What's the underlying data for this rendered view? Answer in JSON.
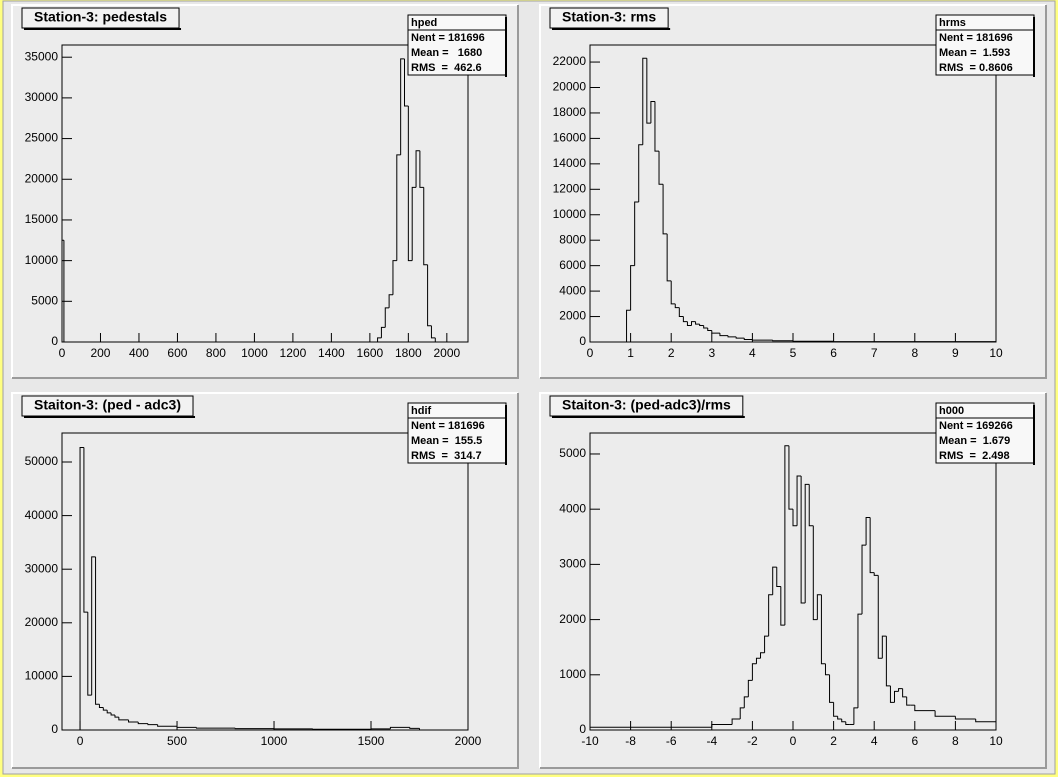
{
  "chart_data": [
    {
      "type": "histogram",
      "title": "Station-3: pedestals",
      "color": "#000000",
      "bins": [
        0,
        10,
        1640,
        1660,
        1680,
        1700,
        1720,
        1740,
        1760,
        1780,
        1800,
        1820,
        1840,
        1860,
        1880,
        1900,
        1920,
        1940,
        1960,
        2110
      ],
      "values": [
        12500,
        0,
        500,
        1800,
        4200,
        5800,
        10000,
        23000,
        34800,
        29000,
        10000,
        19000,
        23500,
        19000,
        9500,
        2000,
        500,
        0,
        0
      ],
      "xlim": [
        0,
        2110
      ],
      "ylim": [
        0,
        36500
      ],
      "xticks": [
        0,
        200,
        400,
        600,
        800,
        1000,
        1200,
        1400,
        1600,
        1800,
        2000
      ],
      "yticks": [
        0,
        5000,
        10000,
        15000,
        20000,
        25000,
        30000,
        35000
      ],
      "stats": {
        "name": "hped",
        "lines": [
          "Nent = 181696",
          "Mean =   1680",
          "RMS  =  462.6"
        ]
      }
    },
    {
      "type": "histogram",
      "title": "Station-3: rms",
      "color": "#000000",
      "bins": [
        0,
        0.9,
        1.0,
        1.1,
        1.2,
        1.3,
        1.4,
        1.5,
        1.6,
        1.7,
        1.8,
        1.9,
        2.0,
        2.1,
        2.2,
        2.3,
        2.4,
        2.5,
        2.6,
        2.7,
        2.8,
        2.9,
        3.0,
        3.2,
        3.4,
        3.6,
        3.8,
        4.0,
        4.5,
        5,
        6,
        10
      ],
      "values": [
        0,
        2500,
        6000,
        11000,
        15500,
        22300,
        17200,
        18900,
        15000,
        12400,
        8500,
        4800,
        3000,
        2700,
        2000,
        1600,
        1300,
        1600,
        1400,
        1300,
        1100,
        900,
        700,
        500,
        400,
        300,
        200,
        150,
        100,
        60,
        30
      ],
      "xlim": [
        0,
        10
      ],
      "ylim": [
        0,
        23340
      ],
      "xticks": [
        0,
        1,
        2,
        3,
        4,
        5,
        6,
        7,
        8,
        9,
        10
      ],
      "yticks": [
        0,
        2000,
        4000,
        6000,
        8000,
        10000,
        12000,
        14000,
        16000,
        18000,
        20000,
        22000
      ],
      "stats": {
        "name": "hrms",
        "lines": [
          "Nent = 181696",
          "Mean =  1.593",
          "RMS  = 0.8606"
        ]
      }
    },
    {
      "type": "histogram",
      "title": "Staiton-3: (ped - adc3)",
      "color": "#000000",
      "bins": [
        0,
        20,
        40,
        60,
        80,
        100,
        120,
        140,
        160,
        180,
        200,
        250,
        300,
        350,
        400,
        500,
        600,
        800,
        1000,
        1200,
        1500,
        1600,
        1700,
        1750,
        2000
      ],
      "values": [
        52700,
        22000,
        6500,
        32300,
        4800,
        4200,
        3700,
        3200,
        2800,
        2400,
        1900,
        1500,
        1200,
        1000,
        700,
        500,
        350,
        250,
        200,
        150,
        200,
        500,
        300,
        0
      ],
      "xlim": [
        -93,
        2000
      ],
      "ylim": [
        0,
        55410
      ],
      "xticks": [
        0,
        500,
        1000,
        1500,
        2000
      ],
      "yticks": [
        0,
        10000,
        20000,
        30000,
        40000,
        50000
      ],
      "stats": {
        "name": "hdif",
        "lines": [
          "Nent = 181696",
          "Mean =  155.5",
          "RMS  =  314.7"
        ]
      }
    },
    {
      "type": "histogram",
      "title": "Staiton-3: (ped-adc3)/rms",
      "color": "#000000",
      "bins": [
        -10,
        -4,
        -3,
        -2.6,
        -2.4,
        -2.2,
        -2.0,
        -1.8,
        -1.6,
        -1.4,
        -1.2,
        -1.0,
        -0.8,
        -0.6,
        -0.4,
        -0.2,
        0,
        0.2,
        0.4,
        0.6,
        0.8,
        1.0,
        1.2,
        1.4,
        1.6,
        1.8,
        2.0,
        2.2,
        2.4,
        2.6,
        2.8,
        3.0,
        3.2,
        3.4,
        3.6,
        3.8,
        4.0,
        4.2,
        4.4,
        4.6,
        4.8,
        5.0,
        5.2,
        5.4,
        5.6,
        5.8,
        6.0,
        7,
        8,
        9,
        10
      ],
      "values": [
        50,
        100,
        200,
        400,
        600,
        900,
        1200,
        1300,
        1400,
        1700,
        2450,
        2950,
        2600,
        1900,
        5150,
        4000,
        3700,
        4600,
        2300,
        4450,
        3700,
        2000,
        2450,
        1200,
        1000,
        500,
        250,
        200,
        150,
        100,
        100,
        400,
        2100,
        3350,
        3850,
        2850,
        2800,
        1300,
        1700,
        800,
        500,
        700,
        750,
        600,
        450,
        450,
        350,
        250,
        200,
        150
      ],
      "xlim": [
        -10,
        10
      ],
      "ylim": [
        0,
        5380
      ],
      "xticks": [
        -10,
        -8,
        -6,
        -4,
        -2,
        0,
        2,
        4,
        6,
        8,
        10
      ],
      "yticks": [
        0,
        1000,
        2000,
        3000,
        4000,
        5000
      ],
      "stats": {
        "name": "h000",
        "lines": [
          "Nent = 169266",
          "Mean =  1.679",
          "RMS  =  2.498"
        ]
      }
    }
  ]
}
